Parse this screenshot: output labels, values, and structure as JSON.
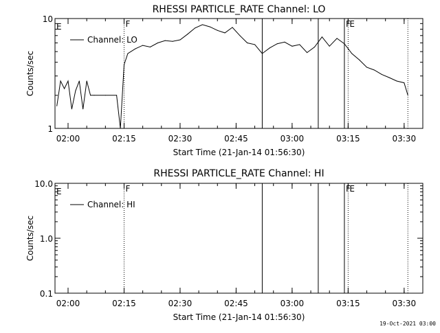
{
  "footer_stamp": "19-Oct-2021 03:00",
  "chart_data": [
    {
      "type": "line",
      "title": "RHESSI PARTICLE_RATE Channel: LO",
      "xlabel": "Start Time (21-Jan-14 01:56:30)",
      "ylabel": "Counts/sec",
      "yscale": "log",
      "ylim": [
        1,
        10
      ],
      "y_ticks": [
        "1",
        "10"
      ],
      "xlim": [
        "01:56:30",
        "03:35:00"
      ],
      "x_ticks": [
        "02:00",
        "02:15",
        "02:30",
        "02:45",
        "03:00",
        "03:15",
        "03:30"
      ],
      "legend": {
        "placement": "top-left",
        "entries": [
          "Channel: LO"
        ]
      },
      "grid": false,
      "markers": [
        {
          "time": "02:15:00",
          "label": "F",
          "style": "dotted"
        },
        {
          "time": "03:14:00",
          "label": "F",
          "style": "solid"
        },
        {
          "time": "03:15:00",
          "label": "E",
          "style": "dotted"
        },
        {
          "time": "03:31:00",
          "label": "",
          "style": "dotted"
        }
      ],
      "edge_labels": [
        {
          "time": "01:56:30",
          "label": "E"
        }
      ],
      "lines": [
        {
          "time": "02:52:00",
          "style": "solid"
        },
        {
          "time": "03:07:00",
          "style": "solid"
        }
      ],
      "series": [
        {
          "name": "Channel: LO",
          "x": [
            "01:57:00",
            "01:58:00",
            "01:59:00",
            "02:00:00",
            "02:01:00",
            "02:02:00",
            "02:03:00",
            "02:04:00",
            "02:05:00",
            "02:06:00",
            "02:07:00",
            "02:10:00",
            "02:13:00",
            "02:14:00",
            "02:15:00",
            "02:16:00",
            "02:18:00",
            "02:20:00",
            "02:22:00",
            "02:24:00",
            "02:26:00",
            "02:28:00",
            "02:30:00",
            "02:32:00",
            "02:34:00",
            "02:36:00",
            "02:38:00",
            "02:40:00",
            "02:42:00",
            "02:44:00",
            "02:46:00",
            "02:48:00",
            "02:50:00",
            "02:52:00",
            "02:54:00",
            "02:56:00",
            "02:58:00",
            "03:00:00",
            "03:02:00",
            "03:04:00",
            "03:06:00",
            "03:08:00",
            "03:10:00",
            "03:12:00",
            "03:14:00",
            "03:16:00",
            "03:18:00",
            "03:20:00",
            "03:22:00",
            "03:24:00",
            "03:26:00",
            "03:28:00",
            "03:30:00",
            "03:31:00"
          ],
          "values": [
            1.6,
            2.7,
            2.3,
            2.7,
            1.5,
            2.2,
            2.7,
            1.5,
            2.7,
            2.0,
            2.0,
            2.0,
            2.0,
            1.0,
            3.8,
            4.8,
            5.3,
            5.7,
            5.5,
            6.0,
            6.3,
            6.2,
            6.4,
            7.2,
            8.2,
            8.8,
            8.4,
            7.8,
            7.4,
            8.3,
            7.0,
            6.0,
            5.8,
            4.8,
            5.4,
            5.9,
            6.1,
            5.6,
            5.8,
            4.9,
            5.5,
            6.8,
            5.6,
            6.6,
            5.9,
            4.8,
            4.2,
            3.6,
            3.4,
            3.1,
            2.9,
            2.7,
            2.6,
            2.0
          ]
        }
      ]
    },
    {
      "type": "line",
      "title": "RHESSI PARTICLE_RATE Channel: HI",
      "xlabel": "Start Time (21-Jan-14 01:56:30)",
      "ylabel": "Counts/sec",
      "yscale": "log",
      "ylim": [
        0.1,
        10
      ],
      "y_ticks": [
        "0.1",
        "1.0",
        "10.0"
      ],
      "xlim": [
        "01:56:30",
        "03:35:00"
      ],
      "x_ticks": [
        "02:00",
        "02:15",
        "02:30",
        "02:45",
        "03:00",
        "03:15",
        "03:30"
      ],
      "legend": {
        "placement": "top-left",
        "entries": [
          "Channel: HI"
        ]
      },
      "grid": false,
      "markers": [
        {
          "time": "02:15:00",
          "label": "F",
          "style": "dotted"
        },
        {
          "time": "03:14:00",
          "label": "F",
          "style": "solid"
        },
        {
          "time": "03:15:00",
          "label": "E",
          "style": "dotted"
        },
        {
          "time": "03:31:00",
          "label": "",
          "style": "dotted"
        }
      ],
      "edge_labels": [
        {
          "time": "01:56:30",
          "label": "E"
        }
      ],
      "lines": [
        {
          "time": "02:52:00",
          "style": "solid"
        },
        {
          "time": "03:07:00",
          "style": "solid"
        }
      ],
      "series": [
        {
          "name": "Channel: HI",
          "x": [],
          "values": []
        }
      ]
    }
  ]
}
